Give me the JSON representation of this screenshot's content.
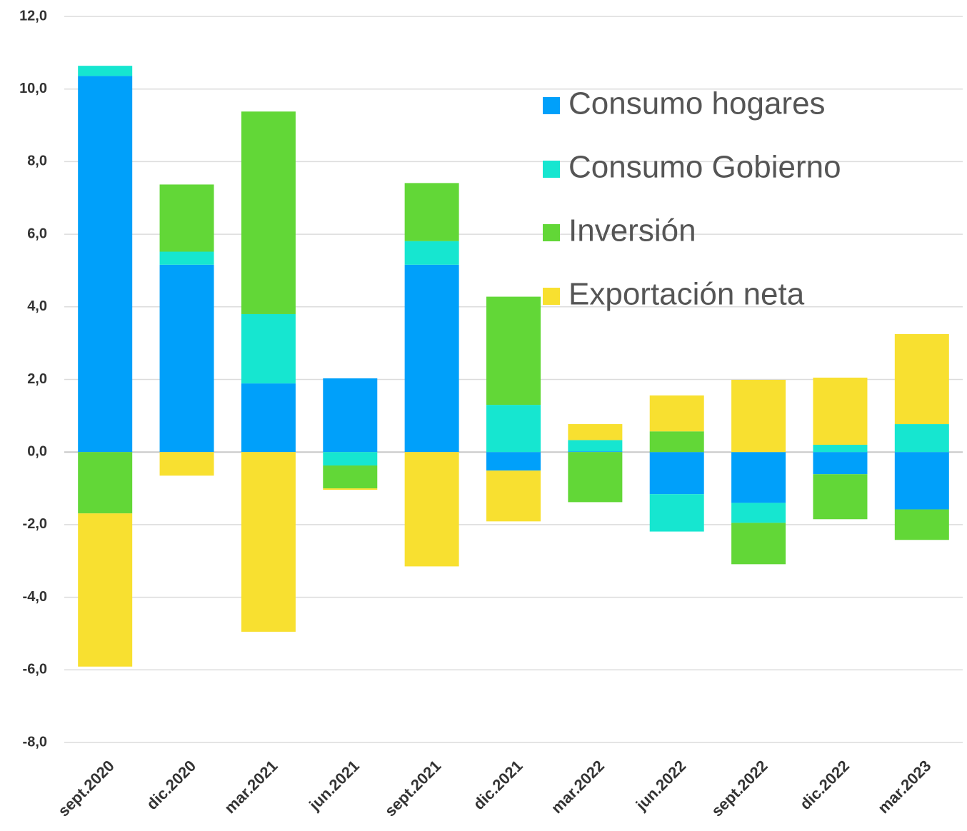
{
  "chart_data": {
    "type": "stacked_bar",
    "categories": [
      "sept.2020",
      "dic.2020",
      "mar.2021",
      "jun.2021",
      "sept.2021",
      "dic.2021",
      "mar.2022",
      "jun.2022",
      "sept.2022",
      "dic.2022",
      "mar.2023"
    ],
    "series": [
      {
        "name": "Consumo hogares",
        "color": "#00a0fa",
        "values": [
          10.36,
          5.16,
          1.89,
          2.03,
          5.16,
          -0.51,
          0.02,
          -1.16,
          -1.4,
          -0.61,
          -1.58
        ]
      },
      {
        "name": "Consumo Gobierno",
        "color": "#16e6d0",
        "values": [
          0.28,
          0.36,
          1.91,
          -0.37,
          0.65,
          1.3,
          0.31,
          -1.03,
          -0.55,
          0.2,
          0.77
        ]
      },
      {
        "name": "Inversión",
        "color": "#62d737",
        "values": [
          -1.69,
          1.85,
          5.58,
          -0.63,
          1.6,
          2.98,
          -1.38,
          0.57,
          -1.14,
          -1.24,
          -0.84
        ]
      },
      {
        "name": "Exportación neta",
        "color": "#f8e030",
        "values": [
          -4.22,
          -0.65,
          -4.95,
          -0.04,
          -3.15,
          -1.4,
          0.44,
          0.99,
          1.99,
          1.85,
          2.48
        ]
      }
    ],
    "ylim": [
      -8,
      12
    ],
    "yticks": [
      {
        "value": -8,
        "label": "-8,0"
      },
      {
        "value": -6,
        "label": "-6,0"
      },
      {
        "value": -4,
        "label": "-4,0"
      },
      {
        "value": -2,
        "label": "-2,0"
      },
      {
        "value": 0,
        "label": "0,0"
      },
      {
        "value": 2,
        "label": "2,0"
      },
      {
        "value": 4,
        "label": "4,0"
      },
      {
        "value": 6,
        "label": "6,0"
      },
      {
        "value": 8,
        "label": "8,0"
      },
      {
        "value": 10,
        "label": "10,0"
      },
      {
        "value": 12,
        "label": "12,0"
      }
    ],
    "grid": true
  }
}
